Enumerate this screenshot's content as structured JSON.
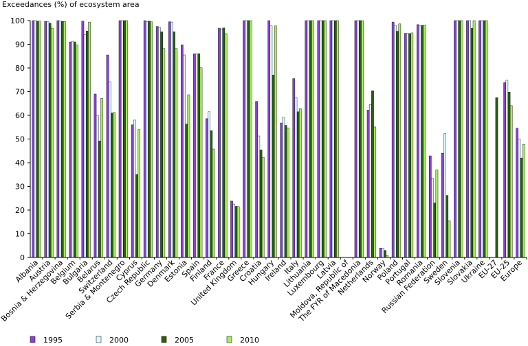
{
  "chart_data": {
    "type": "bar",
    "ylabel": "Exceedances (%) of ecosystem area",
    "ylim": [
      0,
      100
    ],
    "yticks": [
      0,
      10,
      20,
      30,
      40,
      50,
      60,
      70,
      80,
      90,
      100
    ],
    "grid": false,
    "legend_position": "bottom",
    "categories": [
      "Albania",
      "Austria",
      "Bosnia & Herzegovina",
      "Belgium",
      "Bulgaria",
      "Belarus",
      "Switzerland",
      "Serbia & Montenegro",
      "Cyprus",
      "Czech Republic",
      "Germany",
      "Denmark",
      "Estonia",
      "Spain",
      "Finland",
      "France",
      "United Kingdom",
      "Greece",
      "Croatia",
      "Hungary",
      "Ireland",
      "Italy",
      "Lithuania",
      "Luxembourg",
      "Latvia",
      "Moldova, Republic of",
      "The FYR of Macedonia",
      "Netherlands",
      "Norway",
      "Poland",
      "Portugal",
      "Romania",
      "Russian Federation",
      "Sweden",
      "Slovenia",
      "Slovakia",
      "Ukraine",
      "EU-27",
      "EU-25",
      "Europe"
    ],
    "series": [
      {
        "name": "1995",
        "color": "#8b3fd9",
        "values": [
          100,
          99.7,
          100,
          91,
          99.8,
          69,
          85.5,
          100,
          56,
          100,
          97.5,
          99.5,
          89.8,
          86,
          58.6,
          96.8,
          23.8,
          100,
          65.9,
          100,
          56.8,
          75.5,
          100,
          100,
          100,
          0,
          100,
          62.2,
          4,
          99.4,
          94.6,
          98.3,
          42.9,
          44,
          100,
          100,
          100,
          null,
          73.8,
          54.6
        ]
      },
      {
        "name": "2000",
        "color": "#d8fbfb",
        "values": [
          100,
          99.5,
          99.8,
          91.3,
          94,
          60,
          74.2,
          100,
          58,
          99.6,
          97.2,
          99.4,
          85.5,
          86,
          61.5,
          96.2,
          22.5,
          100,
          51.3,
          97.8,
          59.2,
          67.5,
          100,
          100,
          100,
          0,
          100,
          64.6,
          4,
          98,
          94.6,
          97.8,
          33.5,
          52.3,
          100,
          100,
          100,
          null,
          74.8,
          50
        ]
      },
      {
        "name": "2005",
        "color": "#2a5e0c",
        "values": [
          99.8,
          98.9,
          99.7,
          91,
          95.6,
          49.2,
          61,
          100,
          35,
          99.8,
          95.3,
          95.3,
          56.3,
          86,
          53.5,
          96.9,
          21.6,
          100,
          45.4,
          77,
          55.8,
          61.5,
          100,
          100,
          100,
          0,
          100,
          70.4,
          3,
          95.5,
          94.5,
          98,
          23,
          26.2,
          100,
          96.8,
          100,
          67.5,
          69.8,
          42
        ]
      },
      {
        "name": "2010",
        "color": "#a9ec60",
        "values": [
          99.8,
          96.8,
          99.6,
          89.8,
          99.4,
          67.2,
          61.2,
          100,
          54,
          99.5,
          88.2,
          88.2,
          68.7,
          80.1,
          45.8,
          94.5,
          21.5,
          100,
          42.3,
          97.8,
          54.7,
          62.8,
          100,
          100,
          100,
          0,
          100,
          55.1,
          0.8,
          98.6,
          94.8,
          98.2,
          37,
          15.4,
          100,
          100,
          100,
          null,
          64.1,
          47.8
        ]
      }
    ]
  }
}
